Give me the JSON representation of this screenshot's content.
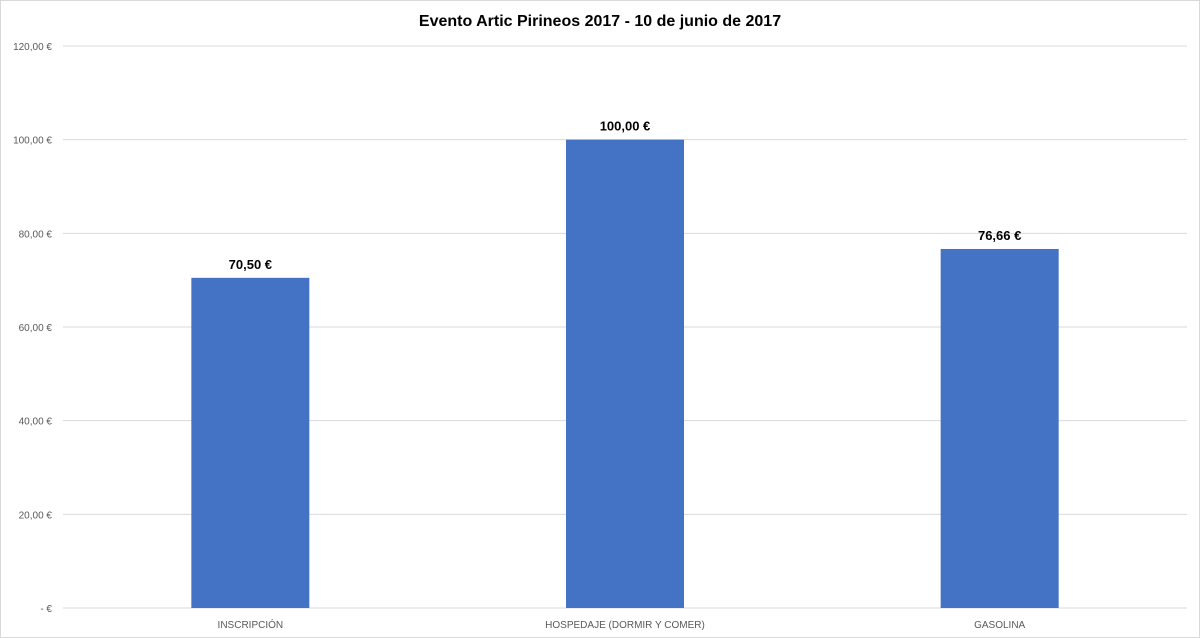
{
  "chart_data": {
    "type": "bar",
    "title": "Evento Artic Pirineos 2017 - 10 de junio de 2017",
    "xlabel": "",
    "ylabel": "",
    "categories": [
      "INSCRIPCIÓN",
      "HOSPEDAJE (DORMIR Y COMER)",
      "GASOLINA"
    ],
    "values": [
      70.5,
      100.0,
      76.66
    ],
    "data_labels": [
      "70,50 €",
      "100,00 €",
      "76,66 €"
    ],
    "ylim": [
      0,
      120
    ],
    "yticks": [
      0,
      20,
      40,
      60,
      80,
      100,
      120
    ],
    "ytick_labels": [
      "-   €",
      "20,00 €",
      "40,00 €",
      "60,00 €",
      "80,00 €",
      "100,00 €",
      "120,00 €"
    ],
    "grid": true,
    "legend": "none",
    "bar_color": "#4472C4"
  }
}
